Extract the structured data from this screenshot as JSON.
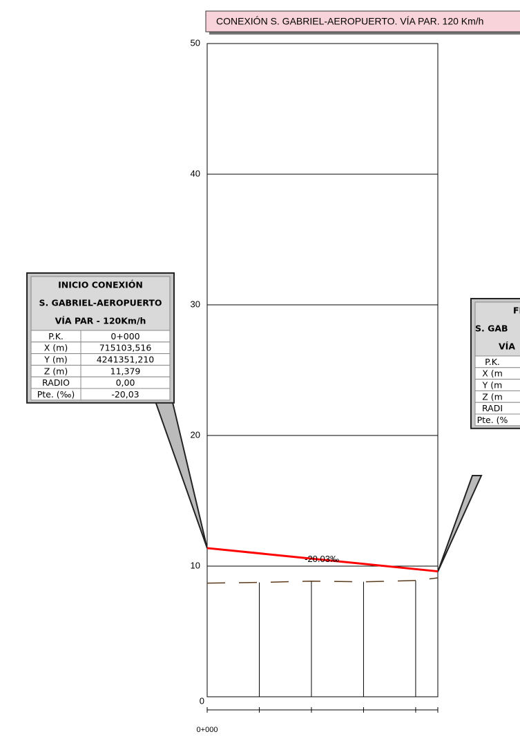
{
  "chart_data": {
    "type": "line",
    "title": "CONEXIÓN S. GABRIEL-AEROPUERTO. VÍA PAR. 120 Km/h",
    "ylim": [
      0,
      50
    ],
    "yticks": [
      0,
      10,
      20,
      30,
      40,
      50
    ],
    "xlim": [
      0,
      88.5
    ],
    "xticks": [
      {
        "value": 0,
        "label": "0+000"
      }
    ],
    "grid": true,
    "series": [
      {
        "color": "#ff0000",
        "x": [
          0,
          88.5
        ],
        "values": [
          11.379,
          9.6
        ]
      },
      {
        "color": "#5a3a1a",
        "dash": true,
        "x": [
          0,
          20,
          40,
          60,
          80,
          88.5
        ],
        "values": [
          8.7,
          8.75,
          8.85,
          8.8,
          8.9,
          9.1
        ]
      }
    ],
    "annotations": [
      {
        "text": "-20.03‰",
        "x": 44,
        "y": 10.5
      }
    ]
  },
  "info_boxes": [
    {
      "title_lines": [
        "INICIO CONEXIÓN",
        "S. GABRIEL-AEROPUERTO",
        "VÍA PAR - 120Km/h"
      ],
      "rows": [
        [
          "P.K.",
          "0+000"
        ],
        [
          "X (m)",
          "715103,516"
        ],
        [
          "Y (m)",
          "4241351,210"
        ],
        [
          "Z (m)",
          "11,379"
        ],
        [
          "RADIO",
          "0,00"
        ],
        [
          "Pte. (‰)",
          "-20,03"
        ]
      ]
    },
    {
      "title_lines": [
        "FIN",
        "S. GAB",
        "VÍA"
      ],
      "rows": [
        [
          "P.K."
        ],
        [
          "X (m"
        ],
        [
          "Y (m"
        ],
        [
          "Z (m"
        ],
        [
          "RADI"
        ],
        [
          "Pte. (%"
        ]
      ]
    }
  ]
}
